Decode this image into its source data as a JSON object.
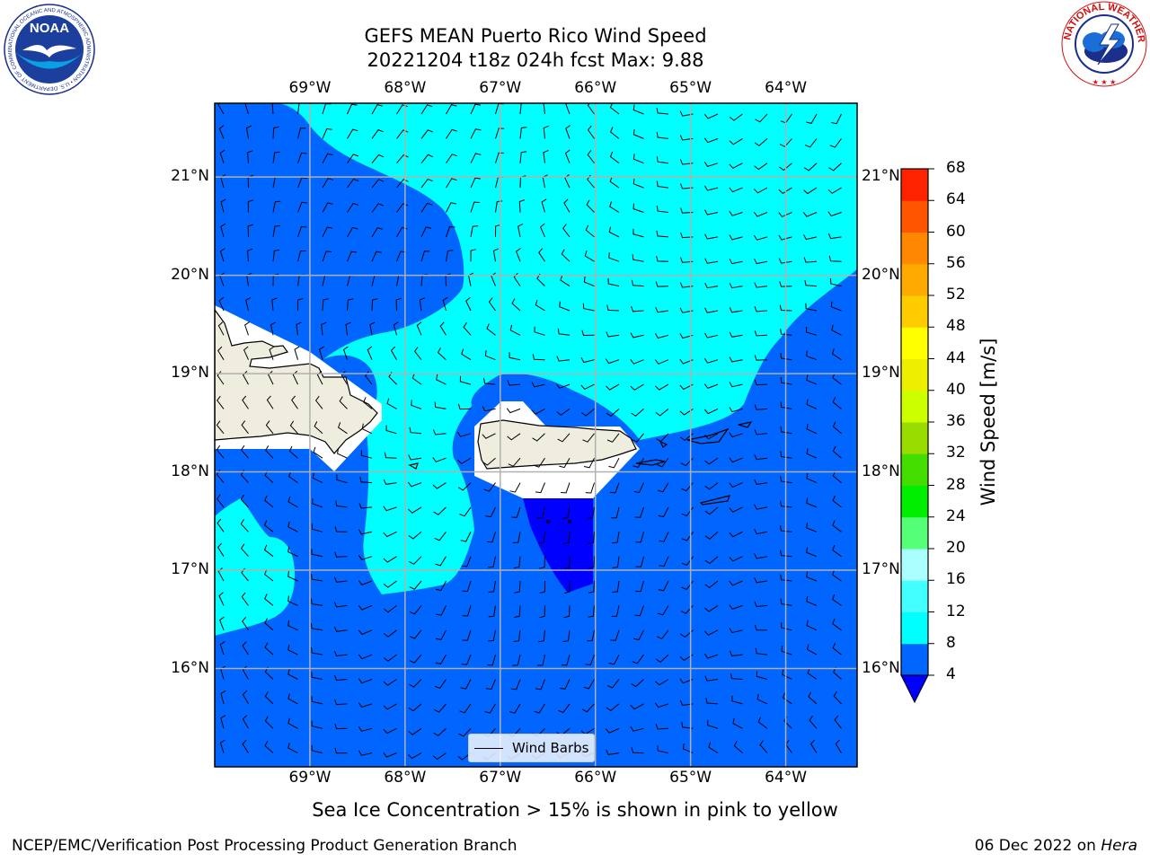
{
  "title": {
    "line1": "GEFS MEAN Puerto Rico Wind Speed",
    "line2": "20221204 t18z 024h fcst   Max: 9.88"
  },
  "map": {
    "lon_ticks": [
      "69°W",
      "68°W",
      "67°W",
      "66°W",
      "65°W",
      "64°W"
    ],
    "lat_ticks": [
      "21°N",
      "20°N",
      "19°N",
      "18°N",
      "17°N",
      "16°N"
    ],
    "lon_values": [
      -69,
      -68,
      -67,
      -66,
      -65,
      -64
    ],
    "lat_values": [
      21,
      20,
      19,
      18,
      17,
      16
    ],
    "extent": {
      "lon_min": -70.0,
      "lon_max": -63.25,
      "lat_min": 15.0,
      "lat_max": 21.75
    },
    "legend": {
      "label": "Wind Barbs"
    },
    "colors": {
      "land": "#efedde",
      "grid": "#b0b0b0",
      "barb": "#000000"
    }
  },
  "colorbar": {
    "label": "Wind Speed [m/s]",
    "ticks": [
      "4",
      "8",
      "12",
      "16",
      "20",
      "24",
      "28",
      "32",
      "36",
      "40",
      "44",
      "48",
      "52",
      "56",
      "60",
      "64",
      "68"
    ],
    "under_color": "#0000ff",
    "colors": [
      "#0066ff",
      "#00ffff",
      "#44ffff",
      "#aaffff",
      "#55ff77",
      "#00ee00",
      "#44dd00",
      "#99dd00",
      "#ccff00",
      "#eeee00",
      "#ffff00",
      "#ffcc00",
      "#ffaa00",
      "#ff8800",
      "#ff5500",
      "#ff2200"
    ]
  },
  "subtitle": "Sea Ice Concentration > 15% is shown in pink to yellow",
  "footer": {
    "left": "NCEP/EMC/Verification Post Processing Product Generation Branch",
    "right_date": "06 Dec 2022 on",
    "right_machine": "Hera"
  },
  "logos": {
    "noaa": {
      "text": "NOAA",
      "ring": "NATIONAL OCEANIC AND ATMOSPHERIC ADMINISTRATION • U.S. DEPARTMENT OF COMMERCE"
    },
    "nws": {
      "ring": "NATIONAL WEATHER SERVICE"
    }
  }
}
